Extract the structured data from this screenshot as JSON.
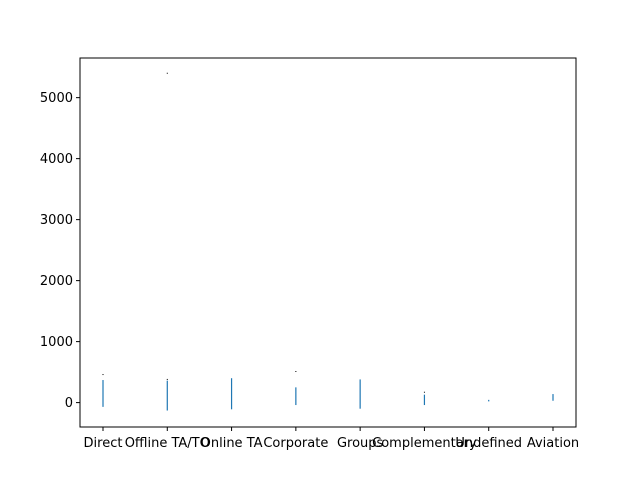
{
  "chart_data": {
    "type": "bar",
    "title": "",
    "xlabel": "",
    "ylabel": "",
    "categories": [
      "Direct",
      "Offline TA/TO",
      "Online TA",
      "Corporate",
      "Groups",
      "Complementary",
      "Undefined",
      "Aviation"
    ],
    "ylim": [
      -400,
      5650
    ],
    "yticks": [
      0,
      1000,
      2000,
      3000,
      4000,
      5000
    ],
    "ytick_labels": [
      "0",
      "1000",
      "2000",
      "3000",
      "4000",
      "5000"
    ],
    "grid": false,
    "legend": "none",
    "series": [
      {
        "color": "#1f77b4",
        "ranges": [
          [
            -70,
            370
          ],
          [
            -130,
            360
          ],
          [
            -110,
            400
          ],
          [
            -40,
            250
          ],
          [
            -100,
            380
          ],
          [
            -40,
            130
          ],
          [
            20,
            45
          ],
          [
            30,
            140
          ]
        ]
      }
    ],
    "outliers": [
      {
        "category": "Direct",
        "values": [
          460
        ]
      },
      {
        "category": "Offline TA/TO",
        "values": [
          5400,
          380
        ]
      },
      {
        "category": "Corporate",
        "values": [
          510
        ]
      },
      {
        "category": "Complementary",
        "values": [
          170
        ]
      }
    ]
  }
}
